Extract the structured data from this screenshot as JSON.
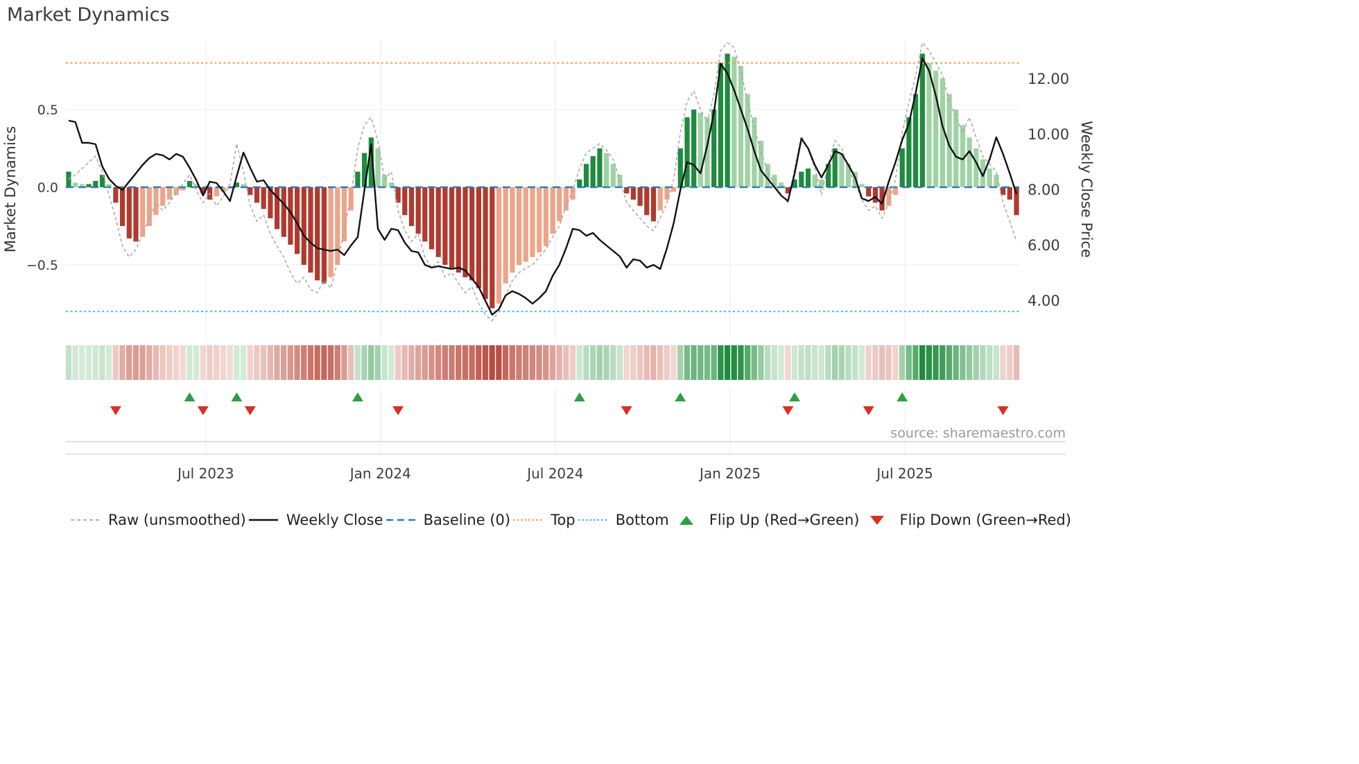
{
  "page": {
    "title": "Market Dynamics",
    "source": "source: sharemaestro.com"
  },
  "colors": {
    "bar_pos_strong": "#1e8b3d",
    "bar_pos_weak": "#9fd3a4",
    "bar_neg_strong": "#b03a2e",
    "bar_neg_weak": "#eda58a",
    "close_line": "#111111",
    "raw_line": "#a8a8a8",
    "baseline": "#2d7bb6",
    "top": "#f0a04b",
    "bottom": "#45b8e8",
    "flip_up": "#2e9e44",
    "flip_down": "#d93025",
    "grid": "#ebebeb",
    "spine": "#d4d4d4",
    "tick_text": "#3d3d3d"
  },
  "legend": {
    "items": [
      {
        "label": "Raw (unsmoothed)",
        "marker": "dash-gray"
      },
      {
        "label": "Weekly Close",
        "marker": "line-black"
      },
      {
        "label": "Baseline (0)",
        "marker": "dash-blue"
      },
      {
        "label": "Top",
        "marker": "dot-orange"
      },
      {
        "label": "Bottom",
        "marker": "dot-cyan"
      },
      {
        "label": "Flip Up (Red→Green)",
        "marker": "tri-up-green"
      },
      {
        "label": "Flip Down (Green→Red)",
        "marker": "tri-down-red"
      }
    ]
  },
  "chart_data": {
    "type": "combo",
    "title": "Market Dynamics",
    "frequency": "weekly",
    "left_axis": {
      "label": "Market Dynamics",
      "range": [
        -0.95,
        0.95
      ],
      "ticks": [
        {
          "label": "0.5",
          "value": 0.5
        },
        {
          "label": "0.0",
          "value": 0.0
        },
        {
          "label": "−0.5",
          "value": -0.5
        }
      ]
    },
    "right_axis": {
      "label": "Weekly Close Price",
      "range": [
        3.0,
        13.2
      ],
      "ticks": [
        {
          "label": "12.00",
          "value": 12
        },
        {
          "label": "10.00",
          "value": 10
        },
        {
          "label": "8.00",
          "value": 8
        },
        {
          "label": "6.00",
          "value": 6
        },
        {
          "label": "4.00",
          "value": 4
        }
      ]
    },
    "x_axis": {
      "ticks": [
        {
          "label": "Jul 2023",
          "week": 20.4
        },
        {
          "label": "Jan 2024",
          "week": 46.4
        },
        {
          "label": "Jul 2024",
          "week": 72.4
        },
        {
          "label": "Jan 2025",
          "week": 98.4
        },
        {
          "label": "Jul 2025",
          "week": 124.4
        }
      ]
    },
    "reference_lines": {
      "baseline": 0,
      "top": 0.8,
      "bottom": -0.8
    },
    "series": [
      {
        "name": "Market Dynamics (smoothed bars)",
        "type": "bar",
        "axis": "left",
        "values": [
          0.1,
          0.03,
          0.02,
          0.02,
          0.04,
          0.08,
          0.02,
          -0.1,
          -0.25,
          -0.33,
          -0.35,
          -0.32,
          -0.25,
          -0.18,
          -0.12,
          -0.08,
          -0.05,
          -0.02,
          0.04,
          0.02,
          -0.04,
          -0.08,
          -0.06,
          -0.03,
          -0.01,
          0.03,
          0.02,
          -0.05,
          -0.1,
          -0.14,
          -0.2,
          -0.27,
          -0.32,
          -0.37,
          -0.43,
          -0.5,
          -0.55,
          -0.6,
          -0.62,
          -0.58,
          -0.5,
          -0.35,
          -0.15,
          0.1,
          0.22,
          0.32,
          0.25,
          0.08,
          0.03,
          -0.1,
          -0.18,
          -0.25,
          -0.3,
          -0.35,
          -0.4,
          -0.45,
          -0.5,
          -0.52,
          -0.55,
          -0.58,
          -0.6,
          -0.65,
          -0.72,
          -0.78,
          -0.75,
          -0.62,
          -0.55,
          -0.5,
          -0.48,
          -0.45,
          -0.42,
          -0.38,
          -0.3,
          -0.22,
          -0.15,
          -0.08,
          0.05,
          0.15,
          0.2,
          0.25,
          0.22,
          0.15,
          0.08,
          -0.04,
          -0.08,
          -0.12,
          -0.18,
          -0.22,
          -0.15,
          -0.08,
          -0.03,
          0.25,
          0.45,
          0.5,
          0.48,
          0.45,
          0.5,
          0.8,
          0.86,
          0.84,
          0.78,
          0.6,
          0.45,
          0.3,
          0.15,
          0.08,
          0.03,
          -0.04,
          0.05,
          0.1,
          0.12,
          0.08,
          0.05,
          0.15,
          0.25,
          0.22,
          0.15,
          0.1,
          0.02,
          -0.06,
          -0.1,
          -0.15,
          -0.12,
          -0.05,
          0.25,
          0.45,
          0.6,
          0.86,
          0.8,
          0.75,
          0.7,
          0.6,
          0.5,
          0.4,
          0.32,
          0.25,
          0.18,
          0.12,
          0.08,
          -0.05,
          -0.08,
          -0.18
        ]
      },
      {
        "name": "Raw (unsmoothed)",
        "type": "line",
        "style": "dashed",
        "axis": "left",
        "values": [
          0.05,
          0.08,
          0.12,
          0.16,
          0.2,
          0.1,
          -0.05,
          -0.2,
          -0.38,
          -0.45,
          -0.4,
          -0.3,
          -0.2,
          -0.1,
          -0.15,
          -0.1,
          -0.04,
          0.02,
          0.08,
          -0.02,
          -0.1,
          -0.04,
          -0.12,
          -0.06,
          0.02,
          0.28,
          0.1,
          -0.12,
          -0.22,
          -0.18,
          -0.3,
          -0.38,
          -0.45,
          -0.55,
          -0.62,
          -0.58,
          -0.66,
          -0.68,
          -0.6,
          -0.65,
          -0.48,
          -0.28,
          -0.05,
          0.25,
          0.4,
          0.45,
          0.3,
          0.05,
          0.1,
          -0.15,
          -0.28,
          -0.35,
          -0.3,
          -0.45,
          -0.52,
          -0.48,
          -0.58,
          -0.55,
          -0.62,
          -0.68,
          -0.64,
          -0.75,
          -0.82,
          -0.86,
          -0.8,
          -0.7,
          -0.6,
          -0.55,
          -0.52,
          -0.5,
          -0.45,
          -0.4,
          -0.32,
          -0.25,
          -0.12,
          -0.02,
          0.12,
          0.22,
          0.25,
          0.28,
          0.24,
          0.18,
          0.05,
          -0.1,
          -0.15,
          -0.2,
          -0.25,
          -0.28,
          -0.2,
          -0.1,
          0.05,
          0.35,
          0.55,
          0.62,
          0.5,
          0.42,
          0.6,
          0.88,
          0.93,
          0.9,
          0.75,
          0.55,
          0.38,
          0.22,
          0.1,
          0.02,
          -0.05,
          -0.1,
          0.12,
          0.33,
          0.25,
          0.12,
          -0.05,
          0.15,
          0.3,
          0.25,
          0.12,
          0.02,
          -0.08,
          -0.15,
          -0.12,
          -0.2,
          -0.1,
          0.05,
          0.35,
          0.55,
          0.72,
          0.93,
          0.88,
          0.8,
          0.72,
          0.55,
          0.45,
          0.35,
          0.45,
          0.32,
          0.2,
          0.15,
          0.1,
          -0.1,
          -0.22,
          -0.35
        ]
      },
      {
        "name": "Weekly Close",
        "type": "line",
        "axis": "right",
        "values": [
          10.5,
          10.45,
          9.7,
          9.7,
          9.65,
          8.85,
          8.4,
          8.15,
          8.0,
          8.3,
          8.6,
          8.9,
          9.15,
          9.3,
          9.25,
          9.1,
          9.3,
          9.2,
          8.8,
          8.35,
          7.8,
          8.3,
          8.25,
          7.95,
          7.6,
          8.5,
          9.35,
          8.8,
          8.3,
          8.35,
          8.0,
          7.75,
          7.5,
          7.2,
          6.8,
          6.35,
          6.1,
          5.9,
          5.85,
          5.8,
          5.85,
          5.65,
          6.0,
          6.3,
          8.0,
          9.65,
          6.6,
          6.2,
          6.6,
          6.55,
          6.1,
          5.8,
          5.75,
          5.3,
          5.2,
          5.25,
          5.2,
          5.15,
          5.2,
          5.1,
          4.8,
          4.5,
          4.0,
          3.5,
          3.7,
          4.2,
          4.35,
          4.25,
          4.1,
          3.9,
          4.1,
          4.35,
          4.9,
          5.3,
          5.9,
          6.6,
          6.55,
          6.35,
          6.45,
          6.2,
          6.0,
          5.8,
          5.6,
          5.2,
          5.5,
          5.45,
          5.2,
          5.3,
          5.15,
          5.9,
          6.8,
          8.0,
          9.0,
          8.9,
          8.6,
          9.6,
          10.8,
          12.55,
          12.2,
          11.6,
          10.9,
          10.2,
          9.4,
          8.7,
          8.4,
          8.1,
          7.8,
          7.6,
          8.6,
          9.85,
          9.5,
          8.9,
          8.45,
          8.9,
          9.4,
          9.3,
          8.9,
          8.45,
          7.7,
          7.6,
          7.75,
          7.5,
          8.3,
          9.0,
          9.8,
          10.4,
          11.5,
          12.75,
          12.3,
          11.4,
          10.3,
          9.6,
          9.2,
          9.1,
          9.4,
          9.0,
          8.5,
          9.1,
          9.9,
          9.3,
          8.6,
          7.85
        ]
      }
    ],
    "heatmap": {
      "note": "color strip derived from smoothed bar values (sign = green/red, shade = magnitude)"
    },
    "flip_up_weeks": [
      18,
      25,
      43,
      76,
      91,
      108,
      124
    ],
    "flip_down_weeks": [
      7,
      20,
      27,
      49,
      83,
      107,
      119,
      139
    ]
  }
}
